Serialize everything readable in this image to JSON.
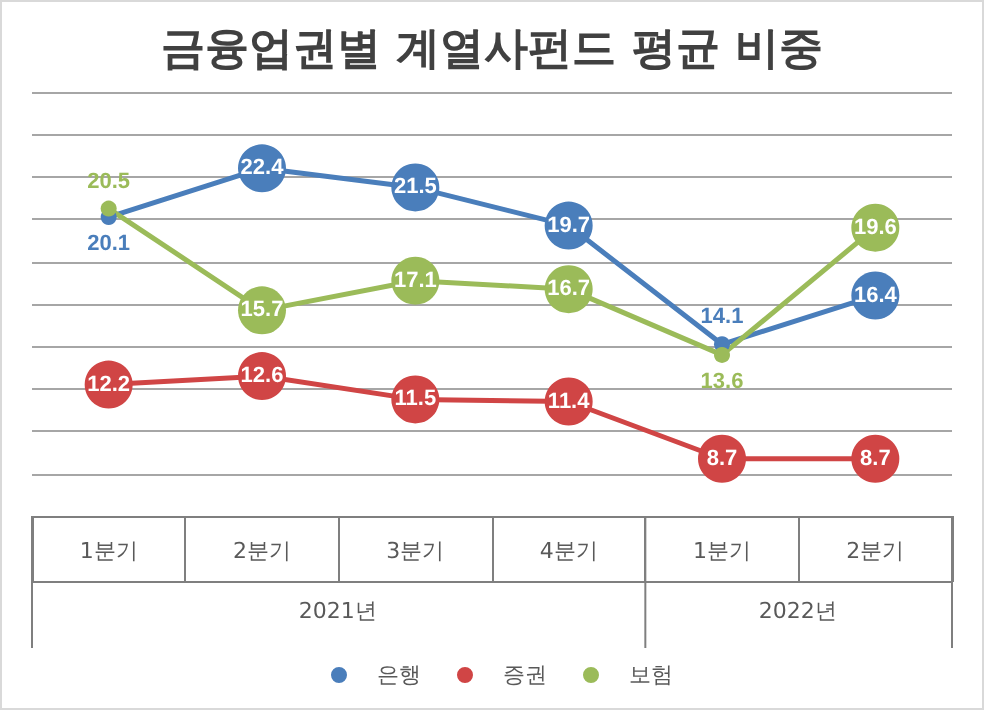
{
  "chart_data": {
    "type": "line",
    "title": "금융업권별 계열사펀드 평균 비중",
    "categories": [
      "1분기",
      "2분기",
      "3분기",
      "4분기",
      "1분기",
      "2분기"
    ],
    "annotations": [
      "2021년",
      "2022년"
    ],
    "series": [
      {
        "name": "은행",
        "color": "#4a7ebb",
        "values": [
          20.1,
          22.4,
          21.5,
          19.7,
          14.1,
          16.4
        ]
      },
      {
        "name": "증권",
        "color": "#d04545",
        "values": [
          12.2,
          12.6,
          11.5,
          11.4,
          8.7,
          8.7
        ]
      },
      {
        "name": "보험",
        "color": "#9bbb59",
        "values": [
          20.5,
          15.7,
          17.1,
          16.7,
          13.6,
          19.6
        ]
      }
    ],
    "ylim": [
      6,
      26
    ],
    "yticks": [
      6,
      8,
      10,
      12,
      14,
      16,
      18,
      20,
      22,
      24,
      26
    ],
    "tick_labels": "x",
    "grid": "y",
    "legend": "bottom",
    "marker": "circle",
    "line_style": "solid",
    "data_labels": true
  }
}
